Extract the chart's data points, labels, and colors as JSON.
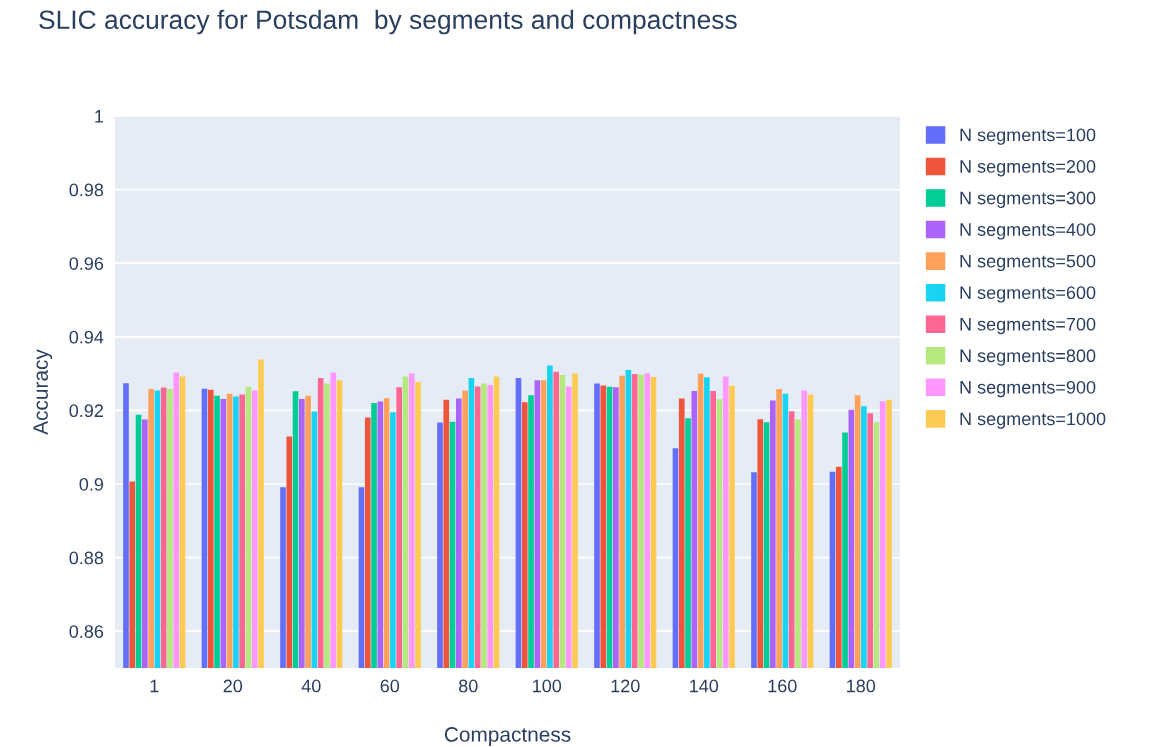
{
  "chart_data": {
    "type": "bar",
    "title": "SLIC accuracy for Potsdam  by segments and compactness",
    "xlabel": "Compactness",
    "ylabel": "Accuracy",
    "categories": [
      "1",
      "20",
      "40",
      "60",
      "80",
      "100",
      "120",
      "140",
      "160",
      "180"
    ],
    "ylim": [
      0.85,
      1
    ],
    "yticks": [
      0.86,
      0.88,
      0.9,
      0.92,
      0.94,
      0.96,
      0.98,
      1
    ],
    "grid": "y",
    "legend": "right",
    "series": [
      {
        "name": "N segments=100",
        "color": "#636efa",
        "values": [
          0.9274,
          0.9259,
          0.8991,
          0.8991,
          0.9167,
          0.9288,
          0.9273,
          0.9097,
          0.9032,
          0.9033
        ]
      },
      {
        "name": "N segments=200",
        "color": "#ef553b",
        "values": [
          0.9007,
          0.9256,
          0.9129,
          0.9181,
          0.9229,
          0.9222,
          0.9268,
          0.9232,
          0.9176,
          0.9047
        ]
      },
      {
        "name": "N segments=300",
        "color": "#00cc96",
        "values": [
          0.9188,
          0.924,
          0.9252,
          0.922,
          0.9169,
          0.9241,
          0.9264,
          0.9179,
          0.9168,
          0.914
        ]
      },
      {
        "name": "N segments=400",
        "color": "#ab63fa",
        "values": [
          0.9175,
          0.9231,
          0.9231,
          0.9224,
          0.9232,
          0.9282,
          0.9263,
          0.9253,
          0.9227,
          0.9202
        ]
      },
      {
        "name": "N segments=500",
        "color": "#ffa15a",
        "values": [
          0.9258,
          0.9245,
          0.924,
          0.9233,
          0.9254,
          0.9282,
          0.9294,
          0.93,
          0.9258,
          0.9241
        ]
      },
      {
        "name": "N segments=600",
        "color": "#19d3f3",
        "values": [
          0.9254,
          0.9238,
          0.9197,
          0.9195,
          0.9288,
          0.9322,
          0.931,
          0.929,
          0.9245,
          0.9211
        ]
      },
      {
        "name": "N segments=700",
        "color": "#ff6692",
        "values": [
          0.9262,
          0.9243,
          0.9288,
          0.9263,
          0.9265,
          0.9305,
          0.9299,
          0.9253,
          0.9198,
          0.9192
        ]
      },
      {
        "name": "N segments=800",
        "color": "#b6e880",
        "values": [
          0.9258,
          0.9264,
          0.9273,
          0.9292,
          0.9273,
          0.9296,
          0.9297,
          0.923,
          0.9175,
          0.9168
        ]
      },
      {
        "name": "N segments=900",
        "color": "#ff97ff",
        "values": [
          0.9303,
          0.9254,
          0.9303,
          0.93,
          0.9269,
          0.9265,
          0.9301,
          0.9292,
          0.9254,
          0.9225
        ]
      },
      {
        "name": "N segments=1000",
        "color": "#fecb52",
        "values": [
          0.9292,
          0.9338,
          0.9282,
          0.9277,
          0.9292,
          0.93,
          0.9291,
          0.9267,
          0.9243,
          0.9229
        ]
      }
    ]
  }
}
